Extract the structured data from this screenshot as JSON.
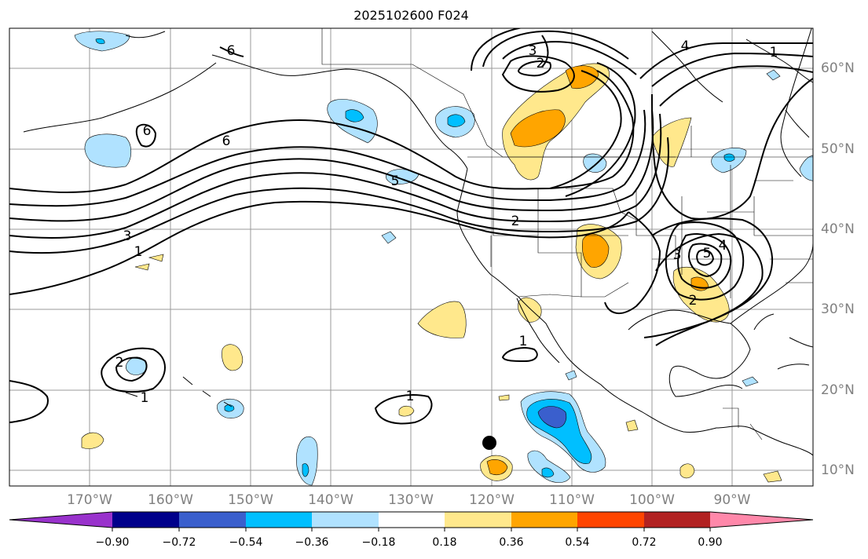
{
  "title": "2025102600 F024",
  "map": {
    "lon_labels": [
      "170°W",
      "160°W",
      "150°W",
      "140°W",
      "130°W",
      "120°W",
      "110°W",
      "100°W",
      "90°W"
    ],
    "lat_labels": [
      "60°N",
      "50°N",
      "40°N",
      "30°N",
      "20°N",
      "10°N"
    ],
    "contour_labels": [
      "6",
      "6",
      "6",
      "5",
      "3",
      "1",
      "2",
      "4",
      "1",
      "3",
      "2",
      "5",
      "4",
      "3",
      "2",
      "2",
      "1",
      "1",
      "1"
    ],
    "marker": "black-dot"
  },
  "colorbar": {
    "tick_labels": [
      "−0.90",
      "−0.72",
      "−0.54",
      "−0.36",
      "−0.18",
      "0.18",
      "0.36",
      "0.54",
      "0.72",
      "0.90"
    ],
    "colors": [
      "#9932cc",
      "#00008b",
      "#3a5fcd",
      "#00bfff",
      "#b0e2ff",
      "#ffffff",
      "#ffe88c",
      "#ffa500",
      "#ff4500",
      "#b22222",
      "#ff88aa"
    ]
  }
}
